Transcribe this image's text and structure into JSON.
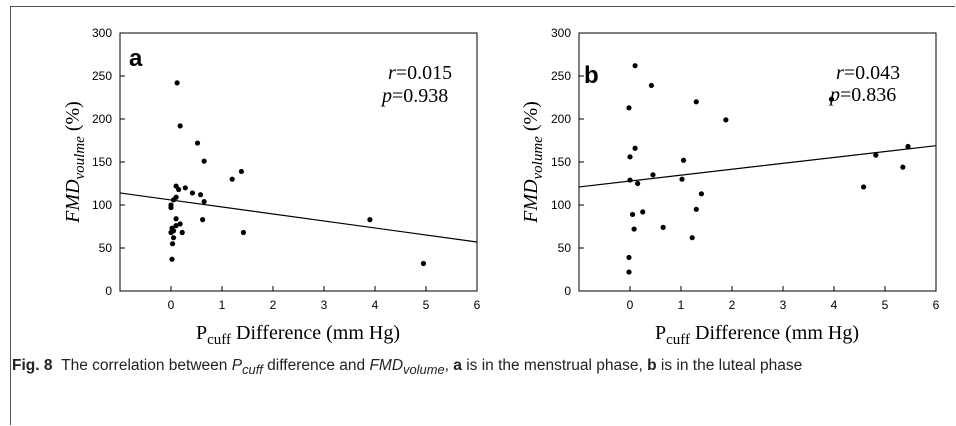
{
  "caption": {
    "label": "Fig. 8",
    "t1": "The correlation between ",
    "pcuff_main": "P",
    "pcuff_sub": "cuff",
    "t2": " difference and ",
    "fmd_main": "FMD",
    "fmd_sub": "volume",
    "t3": ", ",
    "a": "a",
    "t4": " is in the menstrual phase, ",
    "b": "b",
    "t5": " is in the luteal phase"
  },
  "chart_data": [
    {
      "type": "scatter",
      "panel_label": "a",
      "ylabel_main": "FMD",
      "ylabel_sub": "voulme",
      "ylabel_suffix": " (%)",
      "xlabel_main": "P",
      "xlabel_sub": "cuff",
      "xlabel_suffix": " Difference (mm Hg)",
      "xlim": [
        -1,
        6
      ],
      "ylim": [
        0,
        300
      ],
      "xticks": [
        "0",
        "1",
        "2",
        "3",
        "4",
        "5",
        "6"
      ],
      "yticks": [
        "0",
        "50",
        "100",
        "150",
        "200",
        "250",
        "300"
      ],
      "grid": false,
      "annotation_r_label": "r",
      "annotation_r_value": "=0.015",
      "annotation_p_label": "p",
      "annotation_p_value": "=0.938",
      "regression_line": [
        [
          -1,
          114
        ],
        [
          6,
          57
        ]
      ],
      "points": [
        [
          0.12,
          242
        ],
        [
          0.18,
          192
        ],
        [
          0.52,
          172
        ],
        [
          0.65,
          151
        ],
        [
          1.38,
          139
        ],
        [
          1.2,
          130
        ],
        [
          0.1,
          122
        ],
        [
          0.28,
          120
        ],
        [
          0.15,
          118
        ],
        [
          0.42,
          114
        ],
        [
          0.58,
          112
        ],
        [
          0.1,
          109
        ],
        [
          0.05,
          106
        ],
        [
          0.65,
          104
        ],
        [
          0.0,
          100
        ],
        [
          0.0,
          97
        ],
        [
          0.1,
          84
        ],
        [
          0.62,
          83
        ],
        [
          0.18,
          78
        ],
        [
          0.1,
          76
        ],
        [
          0.02,
          73
        ],
        [
          0.05,
          70
        ],
        [
          0.0,
          68
        ],
        [
          0.22,
          68
        ],
        [
          1.42,
          68
        ],
        [
          0.05,
          62
        ],
        [
          0.03,
          55
        ],
        [
          0.02,
          37
        ],
        [
          3.9,
          83
        ],
        [
          4.95,
          32
        ]
      ]
    },
    {
      "type": "scatter",
      "panel_label": "b",
      "ylabel_main": "FMD",
      "ylabel_sub": "volume",
      "ylabel_suffix": " (%)",
      "xlabel_main": "P",
      "xlabel_sub": "cuff",
      "xlabel_suffix": " Difference (mm Hg)",
      "xlim": [
        -1,
        6
      ],
      "ylim": [
        0,
        300
      ],
      "xticks": [
        "0",
        "1",
        "2",
        "3",
        "4",
        "5",
        "6"
      ],
      "yticks": [
        "0",
        "50",
        "100",
        "150",
        "200",
        "250",
        "300"
      ],
      "grid": false,
      "annotation_r_label": "r",
      "annotation_r_value": "=0.043",
      "annotation_p_label": "p",
      "annotation_p_value": "=0.836",
      "regression_line": [
        [
          -1,
          121
        ],
        [
          6,
          169
        ]
      ],
      "points": [
        [
          0.1,
          262
        ],
        [
          0.42,
          239
        ],
        [
          1.3,
          220
        ],
        [
          -0.02,
          213
        ],
        [
          1.88,
          199
        ],
        [
          3.95,
          223
        ],
        [
          0.1,
          166
        ],
        [
          0.0,
          156
        ],
        [
          5.45,
          168
        ],
        [
          4.82,
          158
        ],
        [
          1.05,
          152
        ],
        [
          5.35,
          144
        ],
        [
          0.45,
          135
        ],
        [
          1.02,
          130
        ],
        [
          0.0,
          129
        ],
        [
          0.15,
          125
        ],
        [
          4.58,
          121
        ],
        [
          1.4,
          113
        ],
        [
          0.25,
          92
        ],
        [
          1.3,
          95
        ],
        [
          0.05,
          89
        ],
        [
          0.65,
          74
        ],
        [
          0.08,
          72
        ],
        [
          1.22,
          62
        ],
        [
          -0.02,
          39
        ],
        [
          -0.02,
          22
        ]
      ]
    }
  ]
}
